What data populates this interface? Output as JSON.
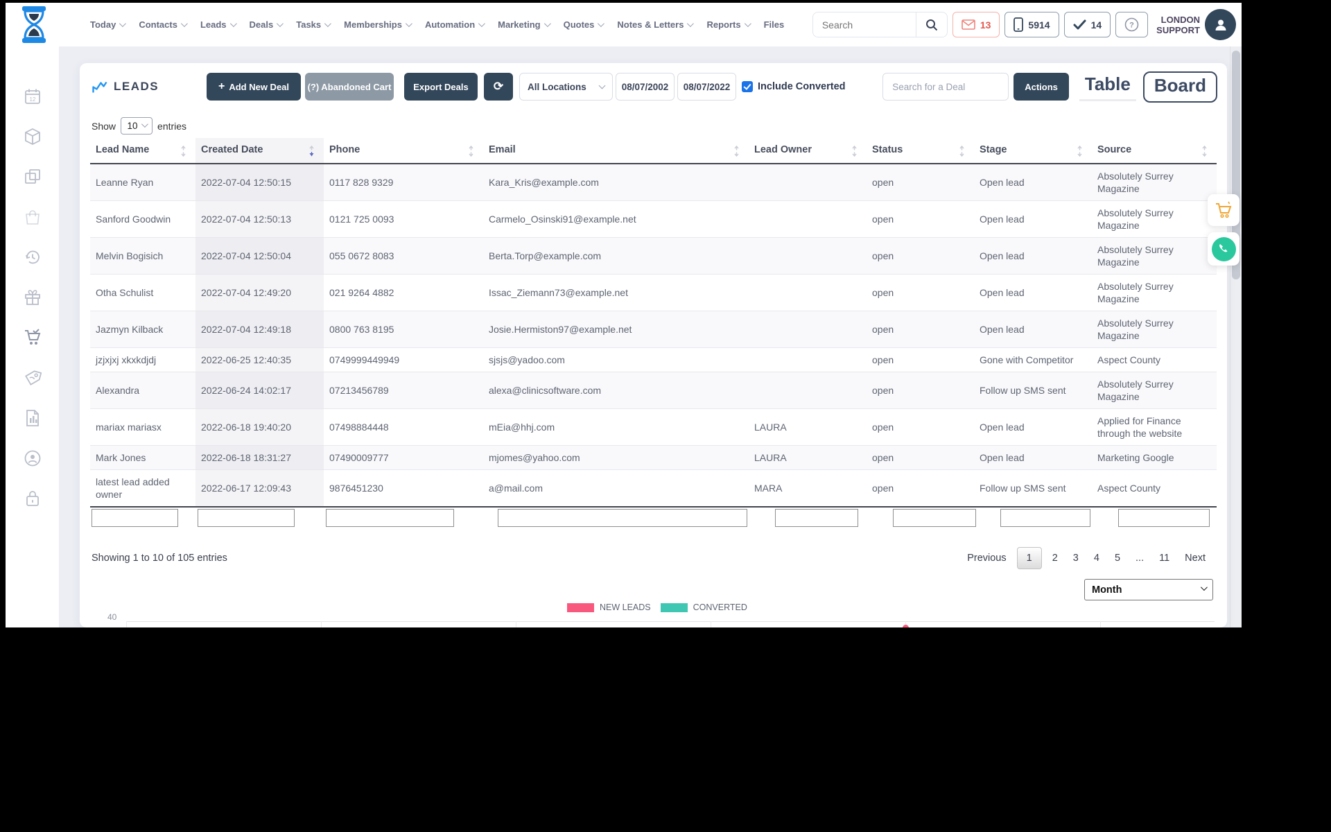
{
  "navbar": {
    "items": [
      {
        "label": "Today",
        "dropdown": true
      },
      {
        "label": "Contacts",
        "dropdown": true
      },
      {
        "label": "Leads",
        "dropdown": true
      },
      {
        "label": "Deals",
        "dropdown": true
      },
      {
        "label": "Tasks",
        "dropdown": true
      },
      {
        "label": "Memberships",
        "dropdown": true
      },
      {
        "label": "Automation",
        "dropdown": true
      },
      {
        "label": "Marketing",
        "dropdown": true
      },
      {
        "label": "Quotes",
        "dropdown": true
      },
      {
        "label": "Notes & Letters",
        "dropdown": true
      },
      {
        "label": "Reports",
        "dropdown": true
      },
      {
        "label": "Files",
        "dropdown": false
      }
    ],
    "search_placeholder": "Search",
    "badges": {
      "mail_count": "13",
      "phone_count": "5914",
      "tasks_count": "14"
    },
    "user": {
      "line1": "LONDON",
      "line2": "SUPPORT"
    }
  },
  "sidebar_icons": [
    "calendar-icon",
    "package-icon",
    "copy-icon",
    "bag-icon",
    "history-icon",
    "gift-icon",
    "cart-icon",
    "tag-icon",
    "report-icon",
    "account-icon",
    "lock-icon"
  ],
  "header": {
    "title": "LEADS",
    "add_new_deal": "Add New Deal",
    "abandoned_cart": "(?) Abandoned Cart",
    "export_deals": "Export Deals",
    "locations": "All Locations",
    "date_from": "08/07/2002",
    "date_to": "08/07/2022",
    "include_converted": "Include Converted",
    "deal_search_placeholder": "Search for a Deal",
    "actions": "Actions",
    "view_table": "Table",
    "view_board": "Board"
  },
  "table": {
    "show_label": "Show",
    "show_value": "10",
    "entries_label": "entries",
    "columns": [
      "Lead Name",
      "Created Date",
      "Phone",
      "Email",
      "Lead Owner",
      "Status",
      "Stage",
      "Source"
    ],
    "rows": [
      {
        "name": "Leanne Ryan",
        "created": "2022-07-04 12:50:15",
        "phone": "0117 828 9329",
        "email": "Kara_Kris@example.com",
        "owner": "",
        "status": "open",
        "stage": "Open lead",
        "source": "Absolutely Surrey Magazine"
      },
      {
        "name": "Sanford Goodwin",
        "created": "2022-07-04 12:50:13",
        "phone": "0121 725 0093",
        "email": "Carmelo_Osinski91@example.net",
        "owner": "",
        "status": "open",
        "stage": "Open lead",
        "source": "Absolutely Surrey Magazine"
      },
      {
        "name": "Melvin Bogisich",
        "created": "2022-07-04 12:50:04",
        "phone": "055 0672 8083",
        "email": "Berta.Torp@example.com",
        "owner": "",
        "status": "open",
        "stage": "Open lead",
        "source": "Absolutely Surrey Magazine"
      },
      {
        "name": "Otha Schulist",
        "created": "2022-07-04 12:49:20",
        "phone": "021 9264 4882",
        "email": "Issac_Ziemann73@example.net",
        "owner": "",
        "status": "open",
        "stage": "Open lead",
        "source": "Absolutely Surrey Magazine"
      },
      {
        "name": "Jazmyn Kilback",
        "created": "2022-07-04 12:49:18",
        "phone": "0800 763 8195",
        "email": "Josie.Hermiston97@example.net",
        "owner": "",
        "status": "open",
        "stage": "Open lead",
        "source": "Absolutely Surrey Magazine"
      },
      {
        "name": "jzjxjxj xkxkdjdj",
        "created": "2022-06-25 12:40:35",
        "phone": "0749999449949",
        "email": "sjsjs@yadoo.com",
        "owner": "",
        "status": "open",
        "stage": "Gone with Competitor",
        "source": "Aspect County"
      },
      {
        "name": "Alexandra",
        "created": "2022-06-24 14:02:17",
        "phone": "07213456789",
        "email": "alexa@clinicsoftware.com",
        "owner": "",
        "status": "open",
        "stage": "Follow up SMS sent",
        "source": "Absolutely Surrey Magazine"
      },
      {
        "name": "mariax mariasx",
        "created": "2022-06-18 19:40:20",
        "phone": "07498884448",
        "email": "mEia@hhj.com",
        "owner": "LAURA",
        "status": "open",
        "stage": "Open lead",
        "source": "Applied for Finance through the website"
      },
      {
        "name": "Mark Jones",
        "created": "2022-06-18 18:31:27",
        "phone": "07490009777",
        "email": "mjomes@yahoo.com",
        "owner": "LAURA",
        "status": "open",
        "stage": "Open lead",
        "source": "Marketing Google"
      },
      {
        "name": "latest lead added owner",
        "created": "2022-06-17 12:09:43",
        "phone": "9876451230",
        "email": "a@mail.com",
        "owner": "MARA",
        "status": "open",
        "stage": "Follow up SMS sent",
        "source": "Aspect County"
      }
    ]
  },
  "footer": {
    "showing": "Showing 1 to 10 of 105 entries",
    "previous": "Previous",
    "pages": [
      "1",
      "2",
      "3",
      "4",
      "5",
      "...",
      "11"
    ],
    "next": "Next",
    "month": "Month"
  },
  "chart_data": {
    "type": "line",
    "legend": [
      "NEW LEADS",
      "CONVERTED"
    ],
    "colors": {
      "new_leads": "#f8587e",
      "converted": "#3fc7b4"
    },
    "y_tick_visible": "40",
    "note": "chart mostly cut off at window bottom"
  }
}
